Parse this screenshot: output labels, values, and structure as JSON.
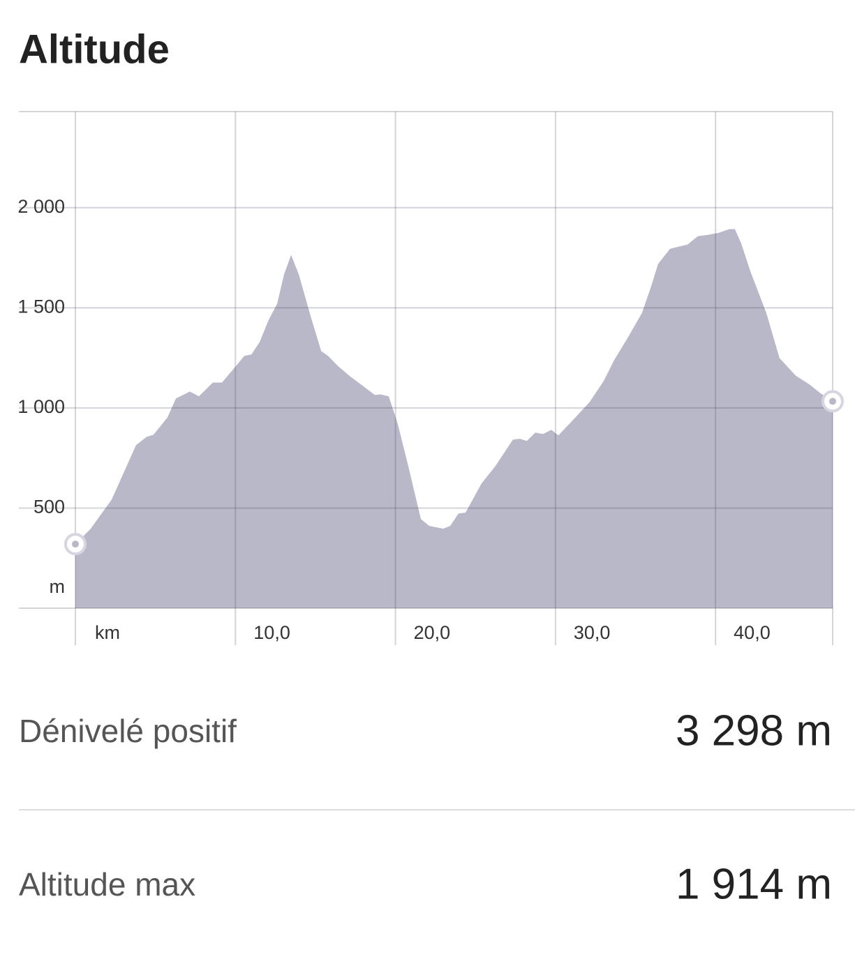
{
  "title": "Altitude",
  "chart_data": {
    "type": "area",
    "x_label": "km",
    "y_label": "m",
    "x": [
      0,
      0.96,
      2.27,
      3.79,
      4.45,
      4.88,
      5.76,
      6.28,
      7.15,
      7.72,
      8.59,
      9.16,
      9.9,
      10.56,
      11.0,
      11.51,
      12.08,
      12.61,
      13.04,
      13.48,
      13.96,
      14.7,
      15.36,
      15.79,
      16.44,
      17.1,
      17.97,
      18.71,
      19.06,
      19.58,
      20.15,
      20.8,
      21.59,
      22.11,
      22.98,
      23.42,
      23.94,
      24.38,
      25.38,
      26.25,
      27.34,
      27.78,
      28.21,
      28.74,
      29.22,
      29.74,
      30.18,
      31.05,
      32.14,
      33.01,
      33.67,
      34.54,
      35.41,
      35.98,
      36.41,
      37.16,
      38.25,
      38.9,
      39.56,
      40.21,
      40.86,
      41.21,
      41.6,
      42.17,
      43.17,
      44.0,
      45.0,
      45.88,
      46.53,
      47.32
    ],
    "values": [
      320,
      397,
      543,
      814,
      856,
      866,
      953,
      1047,
      1082,
      1058,
      1127,
      1127,
      1197,
      1260,
      1267,
      1329,
      1440,
      1521,
      1667,
      1764,
      1667,
      1458,
      1284,
      1260,
      1207,
      1162,
      1110,
      1065,
      1068,
      1058,
      919,
      710,
      445,
      411,
      397,
      411,
      473,
      477,
      623,
      710,
      842,
      846,
      835,
      877,
      870,
      891,
      863,
      936,
      1030,
      1134,
      1239,
      1354,
      1475,
      1608,
      1719,
      1795,
      1816,
      1858,
      1865,
      1875,
      1893,
      1893,
      1823,
      1684,
      1475,
      1249,
      1162,
      1117,
      1075,
      1033
    ],
    "color": "#b9b8c9",
    "xlim": [
      0,
      47.32
    ],
    "ylim": [
      0,
      2480
    ],
    "xticks": [
      {
        "value": 10,
        "label": "10,0"
      },
      {
        "value": 20,
        "label": "20,0"
      },
      {
        "value": 30,
        "label": "30,0"
      },
      {
        "value": 40,
        "label": "40,0"
      }
    ],
    "yticks": [
      500,
      {
        "value": 1000,
        "label": "1 000"
      },
      {
        "value": 1500,
        "label": "1 500"
      },
      {
        "value": 2000,
        "label": "2 000"
      }
    ],
    "grid": true
  },
  "stats": [
    {
      "label": "Dénivelé positif",
      "value": "3 298 m"
    },
    {
      "label": "Altitude max",
      "value": "1 914 m"
    }
  ]
}
